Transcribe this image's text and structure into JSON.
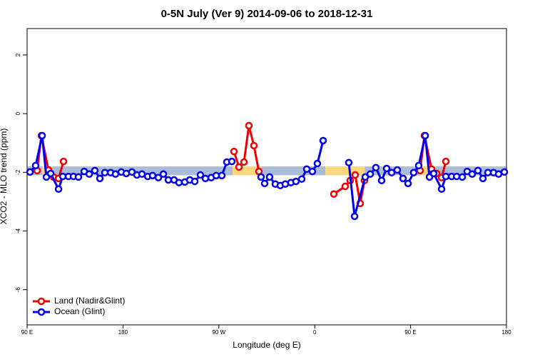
{
  "chart_data": {
    "type": "line",
    "title": "0-5N July (Ver 9)   2014-09-06 to 2018-12-31",
    "xlabel": "Longitude (deg E)",
    "ylabel": "XCO2 - MLO trend (ppm)",
    "xlim": [
      90,
      540
    ],
    "ylim": [
      -7.2,
      2.9
    ],
    "xticks": [
      {
        "value": 90,
        "label": "90 E"
      },
      180,
      {
        "value": 270,
        "label": "90 W"
      },
      {
        "value": 360,
        "label": "0"
      },
      {
        "value": 450,
        "label": "90 E"
      },
      {
        "value": 540,
        "label": "180"
      }
    ],
    "yticks": [
      2,
      0,
      -2,
      -4,
      -6
    ],
    "legend": "bottom-left",
    "band_ylim": [
      -2.1,
      -1.8
    ],
    "bands": [
      {
        "from": 90,
        "to": 283,
        "color": "#aabcd8"
      },
      {
        "from": 104,
        "to": 114,
        "color": "#f8d77f"
      },
      {
        "from": 283,
        "to": 310,
        "color": "#f8d77f"
      },
      {
        "from": 310,
        "to": 370,
        "color": "#aabcd8"
      },
      {
        "from": 370,
        "to": 407,
        "color": "#f8d77f"
      },
      {
        "from": 407,
        "to": 540,
        "color": "#aabcd8"
      },
      {
        "from": 458,
        "to": 468,
        "color": "#f8d77f"
      }
    ],
    "series": [
      {
        "name": "Land (Nadir&Glint)",
        "color": "#ee0000",
        "x": [
          99.4,
          103.4,
          110.1,
          114.8,
          119.5,
          124.2,
          null,
          284.2,
          288.9,
          293.6,
          298.2,
          302.9,
          307.6,
          null,
          377.9,
          388.6,
          393.3,
          398.0,
          402.7,
          406.7,
          null,
          458.9,
          463.0,
          469.7,
          474.4,
          479.1,
          483.1
        ],
        "values": [
          -1.94,
          -0.75,
          -1.92,
          -2.16,
          -2.21,
          -1.63,
          null,
          -1.29,
          -1.82,
          -1.65,
          -0.41,
          -1.09,
          -1.97,
          null,
          -2.74,
          -2.48,
          -2.28,
          -2.09,
          -3.06,
          -2.28,
          null,
          -1.94,
          -0.75,
          -1.89,
          -2.04,
          -2.18,
          -1.63
        ]
      },
      {
        "name": "Ocean (Glint)",
        "color": "#0000ee",
        "x": [
          92.7,
          98.0,
          104.1,
          108.1,
          112.1,
          119.5,
          123.5,
          128.8,
          133.5,
          138.2,
          143.6,
          148.3,
          153.6,
          158.3,
          163.0,
          168.4,
          173.0,
          178.4,
          183.1,
          188.4,
          193.1,
          197.8,
          203.2,
          207.8,
          213.2,
          217.9,
          222.6,
          227.9,
          232.6,
          238.0,
          242.7,
          247.4,
          252.7,
          257.4,
          262.8,
          267.5,
          272.8,
          277.5,
          282.2,
          null,
          309.6,
          313.0,
          317.6,
          323.0,
          327.7,
          332.4,
          337.7,
          342.4,
          347.8,
          352.5,
          357.8,
          362.5,
          367.9,
          null,
          392.0,
          397.4,
          407.4,
          412.1,
          417.4,
          422.8,
          427.5,
          432.2,
          437.5,
          442.9,
          447.6,
          452.9,
          457.6,
          463.7,
          467.7,
          471.7,
          479.1,
          483.1,
          488.5,
          493.2,
          498.5,
          503.1,
          507.8,
          513.2,
          517.9,
          522.6,
          527.9,
          532.6,
          538.0
        ],
        "values": [
          -1.99,
          -1.77,
          -0.75,
          -2.16,
          -2.04,
          -2.57,
          -2.14,
          -2.14,
          -2.14,
          -2.16,
          -1.97,
          -2.06,
          -1.94,
          -2.21,
          -2.01,
          -2.01,
          -2.06,
          -1.99,
          -2.04,
          -1.99,
          -2.09,
          -2.06,
          -2.14,
          -2.11,
          -2.18,
          -2.06,
          -2.26,
          -2.26,
          -2.35,
          -2.33,
          -2.26,
          -2.31,
          -2.09,
          -2.21,
          -2.18,
          -2.11,
          -2.11,
          -1.65,
          -1.63,
          null,
          -2.16,
          -2.38,
          -2.16,
          -2.4,
          -2.45,
          -2.4,
          -2.35,
          -2.31,
          -2.23,
          -1.89,
          -1.97,
          -1.7,
          -0.92,
          null,
          -1.67,
          -3.5,
          -2.16,
          -2.06,
          -1.84,
          -2.28,
          -1.87,
          -2.01,
          -1.92,
          -2.21,
          -2.38,
          -2.01,
          -1.77,
          -0.75,
          -2.16,
          -2.04,
          -2.57,
          -2.14,
          -2.14,
          -2.14,
          -2.16,
          -1.97,
          -2.06,
          -1.94,
          -2.21,
          -2.01,
          -2.01,
          -2.06,
          -1.99
        ]
      }
    ]
  }
}
